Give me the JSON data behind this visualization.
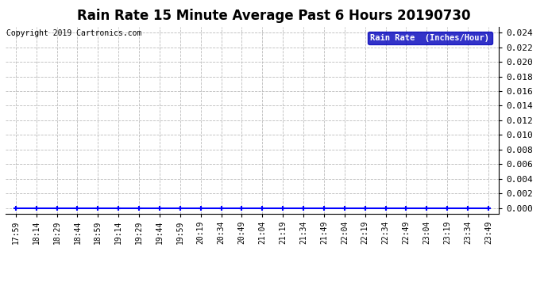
{
  "title": "Rain Rate 15 Minute Average Past 6 Hours 20190730",
  "copyright": "Copyright 2019 Cartronics.com",
  "legend_label": "Rain Rate  (Inches/Hour)",
  "legend_bg": "#0000bb",
  "legend_fg": "#ffffff",
  "ylim_min": 0.0,
  "ylim_max": 0.024,
  "ytick_step": 0.002,
  "x_labels": [
    "17:59",
    "18:14",
    "18:29",
    "18:44",
    "18:59",
    "19:14",
    "19:29",
    "19:44",
    "19:59",
    "20:19",
    "20:34",
    "20:49",
    "21:04",
    "21:19",
    "21:34",
    "21:49",
    "22:04",
    "22:19",
    "22:34",
    "22:49",
    "23:04",
    "23:19",
    "23:34",
    "23:49"
  ],
  "y_values": [
    0.0,
    0.0,
    0.0,
    0.0,
    0.0,
    0.0,
    0.0,
    0.0,
    0.0,
    0.0,
    0.0,
    0.0,
    0.0,
    0.0,
    0.0,
    0.0,
    0.0,
    0.0,
    0.0,
    0.0,
    0.0,
    0.0,
    0.0,
    0.0
  ],
  "line_color": "#0000ff",
  "marker": "+",
  "marker_size": 5,
  "marker_linewidth": 1.5,
  "grid_color": "#bbbbbb",
  "grid_linestyle": "--",
  "grid_linewidth": 0.6,
  "bg_color": "#ffffff",
  "title_fontsize": 12,
  "ytick_fontsize": 8,
  "xtick_fontsize": 7,
  "copyright_fontsize": 7,
  "copyright_color": "#000000",
  "legend_fontsize": 7.5
}
